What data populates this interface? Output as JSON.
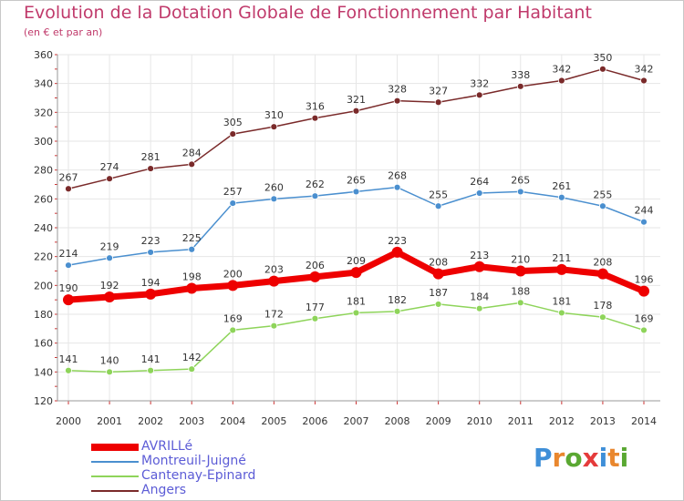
{
  "title": "Evolution de la Dotation Globale de Fonctionnement par Habitant",
  "subtitle": "(en € et par an)",
  "logo": {
    "letters": [
      "P",
      "r",
      "o",
      "x",
      "i",
      "t",
      "i"
    ],
    "colors": [
      "#3f8fd8",
      "#e9872e",
      "#5aa832",
      "#e53b3b",
      "#3f8fd8",
      "#e9872e",
      "#5aa832"
    ]
  },
  "chart_data": {
    "type": "line",
    "x": [
      "2000",
      "2001",
      "2002",
      "2003",
      "2004",
      "2005",
      "2006",
      "2007",
      "2008",
      "2009",
      "2010",
      "2011",
      "2012",
      "2013",
      "2014"
    ],
    "ylim": [
      120,
      360
    ],
    "yticks": [
      120,
      140,
      160,
      180,
      200,
      220,
      240,
      260,
      280,
      300,
      320,
      340,
      360
    ],
    "grid": true,
    "legend_position": "bottom-left",
    "series": [
      {
        "name": "Angers",
        "color": "#7a2a2a",
        "values": [
          267,
          274,
          281,
          284,
          305,
          310,
          316,
          321,
          328,
          327,
          332,
          338,
          342,
          350,
          342
        ]
      },
      {
        "name": "Montreuil-Juigné",
        "color": "#4a8fcf",
        "values": [
          214,
          219,
          223,
          225,
          257,
          260,
          262,
          265,
          268,
          255,
          264,
          265,
          261,
          255,
          244
        ]
      },
      {
        "name": "AVRILLé",
        "color": "#ee0000",
        "values": [
          190,
          192,
          194,
          198,
          200,
          203,
          206,
          209,
          223,
          208,
          213,
          210,
          211,
          208,
          196
        ]
      },
      {
        "name": "Cantenay-Epinard",
        "color": "#8ed45a",
        "values": [
          141,
          140,
          141,
          142,
          169,
          172,
          177,
          181,
          182,
          187,
          184,
          188,
          181,
          178,
          169
        ]
      }
    ],
    "legend": [
      "AVRILLé",
      "Montreuil-Juigné",
      "Cantenay-Epinard",
      "Angers"
    ]
  }
}
